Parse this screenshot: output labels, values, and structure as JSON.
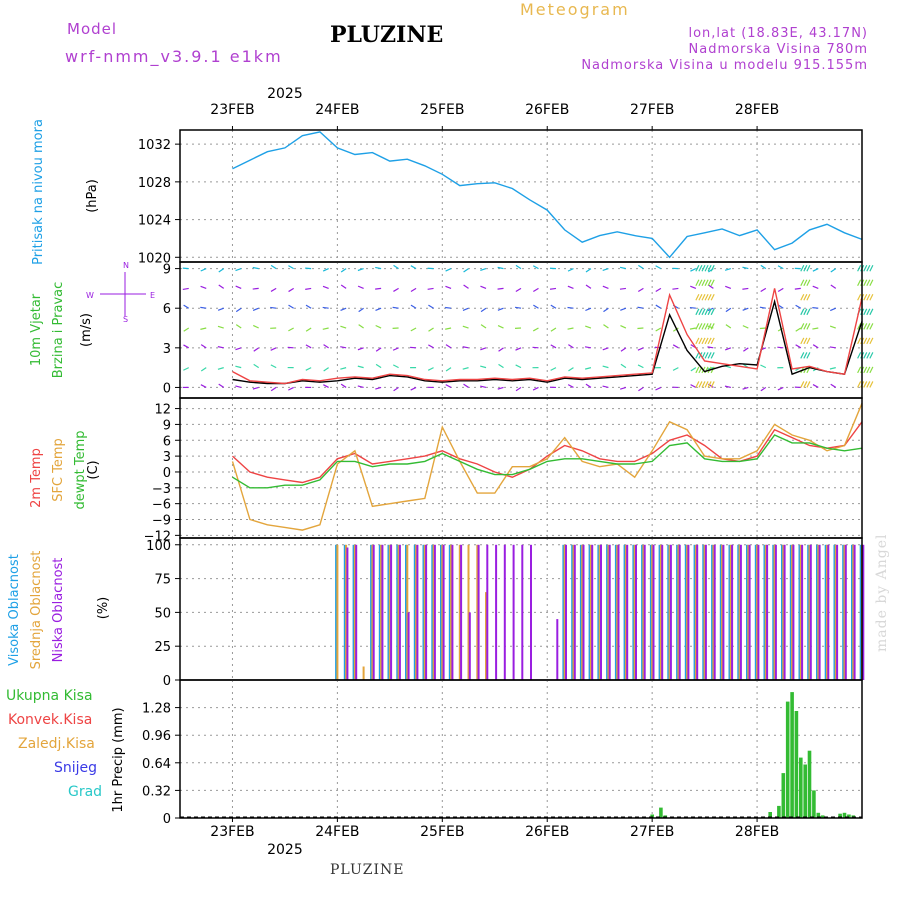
{
  "header": {
    "model_label": "Model",
    "model_name": "wrf-nmm_v3.9.1 e1km",
    "station": "PLUZINE",
    "meteogram_label": "Meteogram",
    "lonlat": "lon,lat (18.83E, 43.17N)",
    "elevation": "Nadmorska Visina 780m",
    "model_elevation": "Nadmorska Visina u modelu 915.155m"
  },
  "footer": {
    "station": "PLUZINE",
    "credit": "made by Angel"
  },
  "colors": {
    "cyan": "#1ea0e6",
    "purple": "#9a1ee0",
    "red": "#ee4444",
    "orange": "#e3a53c",
    "green": "#33bb33",
    "black": "#000000",
    "blue": "#3a3ae6",
    "teal": "#28c8c8",
    "grid": "#999999"
  },
  "chart_data": [
    {
      "type": "line",
      "panel": "pressure",
      "ylabel": "(hPa)",
      "side_label": [
        "Pritisak na nivou mora"
      ],
      "ylim": [
        1019.5,
        1033.5
      ],
      "yticks": [
        1020,
        1024,
        1028,
        1032
      ],
      "x_ticks": [
        "23FEB",
        "24FEB",
        "25FEB",
        "26FEB",
        "27FEB",
        "28FEB"
      ],
      "x_top_year": "2025",
      "x_bottom_year": "2025",
      "x_hours": [
        0,
        4,
        8,
        12,
        16,
        20,
        24,
        28,
        32,
        36,
        40,
        44,
        48,
        52,
        56,
        60,
        64,
        68,
        72,
        76,
        80,
        84,
        88,
        92,
        96,
        100,
        104,
        108,
        112,
        116,
        120,
        124,
        128,
        132,
        136,
        140,
        144
      ],
      "series": [
        {
          "name": "",
          "color": "cyan",
          "values": [
            1029.4,
            1030.3,
            1031.2,
            1031.6,
            1032.9,
            1033.3,
            1031.6,
            1030.9,
            1031.1,
            1030.2,
            1030.4,
            1029.7,
            1028.8,
            1027.6,
            1027.8,
            1027.9,
            1027.3,
            1026.1,
            1025.0,
            1022.9,
            1021.6,
            1022.3,
            1022.7,
            1022.3,
            1022.0,
            1020.0,
            1022.2,
            1022.6,
            1023.0,
            1022.3,
            1022.9,
            1020.8,
            1021.5,
            1022.9,
            1023.5,
            1022.6,
            1021.9
          ]
        }
      ]
    },
    {
      "type": "line",
      "panel": "wind",
      "ylabel": "(m/s)",
      "side_label": [
        "10m Vjetar",
        "Brzina i Pravac"
      ],
      "compass": {
        "n": "N",
        "s": "S",
        "e": "E",
        "w": "W"
      },
      "ylim": [
        -0.8,
        9.5
      ],
      "yticks": [
        0,
        3,
        6,
        9
      ],
      "x_hours": [
        0,
        4,
        8,
        12,
        16,
        20,
        24,
        28,
        32,
        36,
        40,
        44,
        48,
        52,
        56,
        60,
        64,
        68,
        72,
        76,
        80,
        84,
        88,
        92,
        96,
        100,
        104,
        108,
        112,
        116,
        120,
        124,
        128,
        132,
        136,
        140,
        144
      ],
      "series": [
        {
          "name": "",
          "color": "black",
          "values": [
            0.6,
            0.4,
            0.3,
            0.3,
            0.5,
            0.4,
            0.5,
            0.7,
            0.6,
            0.9,
            0.8,
            0.5,
            0.4,
            0.5,
            0.5,
            0.6,
            0.5,
            0.6,
            0.4,
            0.7,
            0.6,
            0.7,
            0.8,
            0.9,
            1.0,
            5.5,
            2.8,
            1.2,
            1.6,
            1.8,
            1.7,
            6.5,
            1.0,
            1.5,
            1.2,
            1.0,
            5.0
          ]
        },
        {
          "name": "",
          "color": "red",
          "values": [
            1.2,
            0.5,
            0.4,
            0.3,
            0.6,
            0.5,
            0.7,
            0.8,
            0.7,
            1.0,
            0.9,
            0.6,
            0.5,
            0.6,
            0.6,
            0.7,
            0.6,
            0.7,
            0.5,
            0.8,
            0.7,
            0.8,
            0.9,
            1.0,
            1.1,
            7.0,
            4.0,
            2.0,
            1.8,
            1.6,
            1.4,
            7.5,
            1.4,
            1.6,
            1.2,
            1.0,
            6.8
          ]
        }
      ]
    },
    {
      "type": "line",
      "panel": "temperature",
      "ylabel": "(C)",
      "side_label": [
        "2m Temp",
        "SFC Temp",
        "dewpt Temp"
      ],
      "ylim": [
        -12.5,
        14
      ],
      "yticks": [
        -12,
        -9,
        -6,
        -3,
        0,
        3,
        6,
        9,
        12
      ],
      "x_hours": [
        0,
        4,
        8,
        12,
        16,
        20,
        24,
        28,
        32,
        36,
        40,
        44,
        48,
        52,
        56,
        60,
        64,
        68,
        72,
        76,
        80,
        84,
        88,
        92,
        96,
        100,
        104,
        108,
        112,
        116,
        120,
        124,
        128,
        132,
        136,
        140,
        144
      ],
      "series": [
        {
          "name": "2m Temp",
          "color": "red",
          "values": [
            3,
            0,
            -1,
            -1.5,
            -2,
            -1,
            2.5,
            3.5,
            1.5,
            2,
            2.5,
            3,
            4,
            2.5,
            1.5,
            0,
            -1,
            0.5,
            3,
            5,
            4,
            2.5,
            2,
            2,
            3.5,
            6,
            7,
            5,
            2.5,
            2,
            3,
            8,
            6.5,
            5,
            4.5,
            5,
            9.5
          ]
        },
        {
          "name": "SFC Temp",
          "color": "orange",
          "values": [
            2,
            -9,
            -10,
            -10.5,
            -11,
            -10,
            1.5,
            4,
            -6.5,
            -6,
            -5.5,
            -5,
            8.5,
            2,
            -4,
            -4,
            1,
            1,
            2.5,
            6.5,
            2,
            1,
            1.5,
            -1,
            4,
            9.5,
            8,
            3,
            2.5,
            2.5,
            4,
            9,
            7,
            6,
            4,
            5,
            13
          ]
        },
        {
          "name": "dewpt Temp",
          "color": "green",
          "values": [
            -1,
            -3,
            -3,
            -2.5,
            -2.5,
            -1.5,
            2,
            2,
            1,
            1.5,
            1.5,
            2,
            3.5,
            2,
            0.5,
            -0.5,
            -0.5,
            0.5,
            2,
            2.5,
            2.5,
            2,
            1.5,
            1.5,
            2,
            5,
            5.5,
            2.5,
            2,
            2,
            2.5,
            7,
            5.5,
            5.5,
            4.5,
            4,
            4.5
          ]
        }
      ]
    },
    {
      "type": "bar",
      "panel": "cloud",
      "ylabel": "(%)",
      "side_label": [
        "Visoka Oblacnost",
        "Srednja Oblacnost",
        "Niska Oblacnost"
      ],
      "ylim": [
        0,
        105
      ],
      "yticks": [
        0,
        25,
        50,
        75,
        100
      ],
      "x_hours": [
        24,
        26,
        28,
        30,
        32,
        34,
        36,
        38,
        40,
        42,
        44,
        46,
        48,
        50,
        52,
        54,
        56,
        58,
        60,
        62,
        64,
        66,
        68,
        70,
        72,
        74,
        76,
        78,
        80,
        82,
        84,
        86,
        88,
        90,
        92,
        94,
        96,
        98,
        100,
        102,
        104,
        106,
        108,
        110,
        112,
        114,
        116,
        118,
        120,
        122,
        124,
        126,
        128,
        130,
        132,
        134,
        136,
        138,
        140,
        142,
        144
      ],
      "series": [
        {
          "name": "Visoka Oblacnost",
          "color": "cyan",
          "values": [
            100,
            100,
            100,
            0,
            100,
            100,
            100,
            100,
            100,
            100,
            100,
            100,
            100,
            100,
            0,
            0,
            0,
            0,
            0,
            0,
            0,
            0,
            0,
            0,
            0,
            0,
            100,
            100,
            100,
            100,
            100,
            100,
            100,
            100,
            100,
            100,
            100,
            100,
            100,
            100,
            100,
            100,
            100,
            100,
            100,
            100,
            100,
            100,
            100,
            100,
            100,
            100,
            100,
            100,
            100,
            100,
            100,
            100,
            100,
            100,
            100
          ]
        },
        {
          "name": "Srednja Oblacnost",
          "color": "orange",
          "values": [
            100,
            100,
            100,
            10,
            100,
            100,
            100,
            100,
            100,
            100,
            100,
            100,
            100,
            100,
            100,
            100,
            100,
            65,
            0,
            0,
            0,
            0,
            0,
            0,
            0,
            0,
            100,
            100,
            100,
            100,
            100,
            100,
            100,
            100,
            100,
            100,
            100,
            100,
            100,
            100,
            100,
            100,
            100,
            100,
            100,
            100,
            100,
            100,
            100,
            100,
            100,
            100,
            100,
            100,
            100,
            100,
            100,
            100,
            100,
            100,
            100
          ]
        },
        {
          "name": "Niska Oblacnost",
          "color": "purple",
          "values": [
            0,
            98,
            100,
            0,
            100,
            100,
            100,
            100,
            50,
            100,
            100,
            100,
            100,
            100,
            100,
            50,
            100,
            100,
            100,
            100,
            100,
            100,
            100,
            0,
            0,
            45,
            100,
            100,
            100,
            100,
            100,
            100,
            100,
            100,
            100,
            100,
            100,
            100,
            100,
            100,
            100,
            100,
            100,
            100,
            100,
            100,
            100,
            100,
            100,
            100,
            100,
            100,
            100,
            100,
            100,
            100,
            100,
            100,
            100,
            100,
            100
          ]
        }
      ]
    },
    {
      "type": "bar",
      "panel": "precipitation",
      "ylabel": "1hr Precip (mm)",
      "legend": [
        "Ukupna Kisa",
        "Konvek.Kisa",
        "Zaledj.Kisa",
        "Snijeg",
        "Grad"
      ],
      "legend_colors": [
        "green",
        "red",
        "orange",
        "blue",
        "teal"
      ],
      "ylim": [
        0,
        1.6
      ],
      "yticks": [
        0,
        0.32,
        0.64,
        0.96,
        1.28
      ],
      "x_ticks": [
        "23FEB",
        "24FEB",
        "25FEB",
        "26FEB",
        "27FEB",
        "28FEB"
      ],
      "x_bottom_year": "2025",
      "x_hours": [
        96,
        98,
        99,
        123,
        125,
        126,
        127,
        128,
        129,
        130,
        131,
        132,
        133,
        134,
        135,
        139,
        140,
        141,
        142
      ],
      "series": [
        {
          "name": "Ukupna Kisa",
          "color": "green",
          "values": [
            0.04,
            0.12,
            0.03,
            0.07,
            0.14,
            0.52,
            1.35,
            1.46,
            1.24,
            0.7,
            0.62,
            0.78,
            0.32,
            0.06,
            0.03,
            0.05,
            0.06,
            0.04,
            0.03
          ]
        }
      ]
    }
  ]
}
